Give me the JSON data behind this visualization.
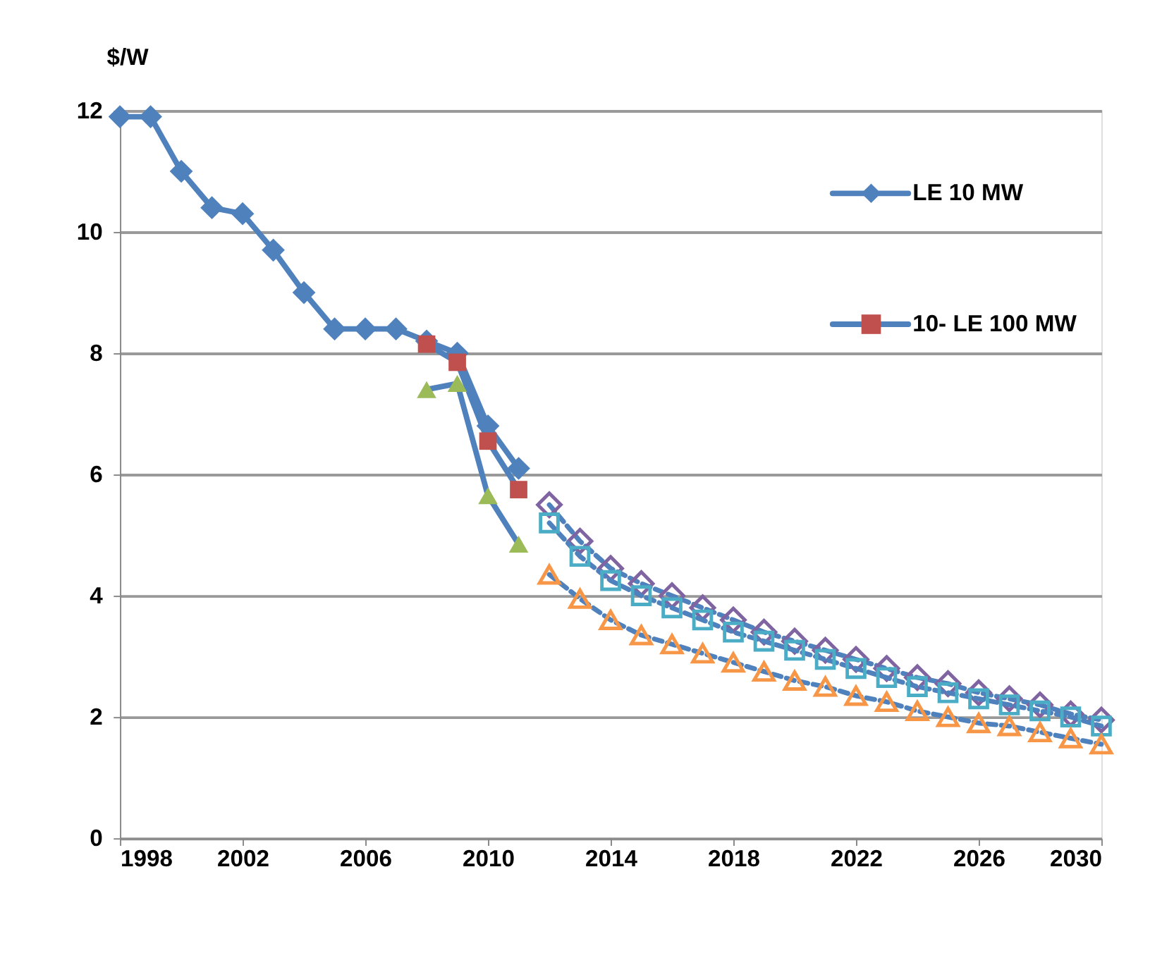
{
  "chart_data": {
    "type": "line",
    "ylabel": "$/W",
    "x": [
      1998,
      1999,
      2000,
      2001,
      2002,
      2003,
      2004,
      2005,
      2006,
      2007,
      2008,
      2009,
      2010,
      2011
    ],
    "xlim": [
      1998,
      2030
    ],
    "xticks": [
      1998,
      2002,
      2006,
      2010,
      2014,
      2018,
      2022,
      2026,
      2030
    ],
    "ylim": [
      0,
      12
    ],
    "yticks": [
      0,
      2,
      4,
      6,
      8,
      10,
      12
    ],
    "grid": "y",
    "legend": "top right",
    "series": [
      {
        "name": "LE 10 MW",
        "color": "#4f81bd",
        "marker": "diamond",
        "line_style": "solid",
        "values": [
          11.9,
          11.9,
          11.0,
          10.4,
          10.3,
          9.7,
          9.0,
          8.4,
          8.4,
          8.4,
          8.2,
          8.0,
          6.8,
          6.1
        ]
      },
      {
        "name": "10- LE 100 MW",
        "color": "#c0504d",
        "marker": "square",
        "line_style": "solid",
        "x": [
          2008,
          2009,
          2010,
          2011
        ],
        "values": [
          8.15,
          7.85,
          6.55,
          5.75
        ]
      },
      {
        "color": "#9bbb59",
        "marker": "triangle",
        "line_style": "solid",
        "x": [
          2008,
          2009,
          2010,
          2011
        ],
        "values": [
          7.4,
          7.5,
          5.65,
          4.85
        ]
      },
      {
        "color": "#8064a2",
        "marker": "diamond",
        "line_style": "dashed",
        "x": [
          2012,
          2013,
          2014,
          2015,
          2016,
          2017,
          2018,
          2019,
          2020,
          2021,
          2022,
          2023,
          2024,
          2025,
          2026,
          2027,
          2028,
          2029,
          2030
        ],
        "values": [
          5.5,
          4.9,
          4.45,
          4.2,
          4.0,
          3.8,
          3.6,
          3.4,
          3.25,
          3.1,
          2.95,
          2.8,
          2.65,
          2.55,
          2.4,
          2.3,
          2.2,
          2.05,
          1.95
        ]
      },
      {
        "color": "#4bacc6",
        "marker": "square",
        "line_style": "dashed",
        "x": [
          2012,
          2013,
          2014,
          2015,
          2016,
          2017,
          2018,
          2019,
          2020,
          2021,
          2022,
          2023,
          2024,
          2025,
          2026,
          2027,
          2028,
          2029,
          2030
        ],
        "values": [
          5.2,
          4.65,
          4.25,
          4.0,
          3.8,
          3.6,
          3.4,
          3.25,
          3.1,
          2.95,
          2.8,
          2.65,
          2.5,
          2.4,
          2.3,
          2.2,
          2.1,
          2.0,
          1.85
        ]
      },
      {
        "color": "#f79646",
        "marker": "triangle",
        "line_style": "dashed",
        "x": [
          2012,
          2013,
          2014,
          2015,
          2016,
          2017,
          2018,
          2019,
          2020,
          2021,
          2022,
          2023,
          2024,
          2025,
          2026,
          2027,
          2028,
          2029,
          2030
        ],
        "values": [
          4.35,
          3.95,
          3.6,
          3.35,
          3.2,
          3.05,
          2.9,
          2.75,
          2.6,
          2.5,
          2.35,
          2.25,
          2.1,
          2.0,
          1.9,
          1.85,
          1.75,
          1.65,
          1.55
        ]
      }
    ]
  }
}
